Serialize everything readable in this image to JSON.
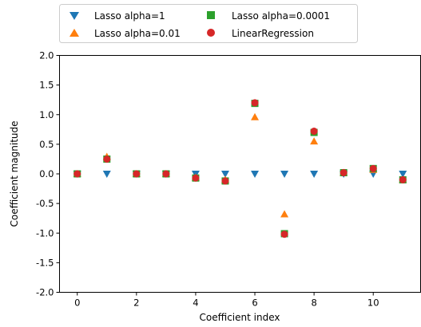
{
  "chart_data": {
    "type": "scatter",
    "xlabel": "Coefficient index",
    "ylabel": "Coefficient magnitude",
    "xlim": [
      -0.6,
      11.6
    ],
    "ylim": [
      -2.0,
      2.0
    ],
    "xticks": [
      "0",
      "2",
      "4",
      "6",
      "8",
      "10"
    ],
    "yticks": [
      "2.0",
      "1.5",
      "1.0",
      "0.5",
      "0.0",
      "-0.5",
      "-1.0",
      "-1.5",
      "-2.0"
    ],
    "grid": false,
    "legend_position": "top-center-outside",
    "series": [
      {
        "name": "Lasso alpha=1",
        "marker": "triangle-down",
        "color": "#1f77b4",
        "x": [
          0,
          1,
          2,
          3,
          4,
          5,
          6,
          7,
          8,
          9,
          10,
          11
        ],
        "y": [
          0,
          0,
          0,
          0,
          0,
          0,
          0,
          0,
          0,
          0,
          0,
          0
        ]
      },
      {
        "name": "Lasso alpha=0.01",
        "marker": "triangle-up",
        "color": "#ff7f0e",
        "x": [
          0,
          1,
          2,
          3,
          4,
          5,
          6,
          7,
          8,
          9,
          10,
          11
        ],
        "y": [
          0,
          0.29,
          0,
          0,
          -0.06,
          -0.1,
          0.96,
          -0.68,
          0.55,
          0.02,
          0.07,
          -0.1
        ]
      },
      {
        "name": "Lasso alpha=0.0001",
        "marker": "square",
        "color": "#2ca02c",
        "x": [
          0,
          1,
          2,
          3,
          4,
          5,
          6,
          7,
          8,
          9,
          10,
          11
        ],
        "y": [
          0,
          0.25,
          0,
          0,
          -0.07,
          -0.12,
          1.19,
          -1.01,
          0.7,
          0.02,
          0.09,
          -0.1
        ]
      },
      {
        "name": "LinearRegression",
        "marker": "circle",
        "color": "#d62728",
        "x": [
          0,
          1,
          2,
          3,
          4,
          5,
          6,
          7,
          8,
          9,
          10,
          11
        ],
        "y": [
          0,
          0.25,
          0,
          0,
          -0.07,
          -0.12,
          1.2,
          -1.02,
          0.72,
          0.02,
          0.09,
          -0.1
        ]
      }
    ]
  }
}
